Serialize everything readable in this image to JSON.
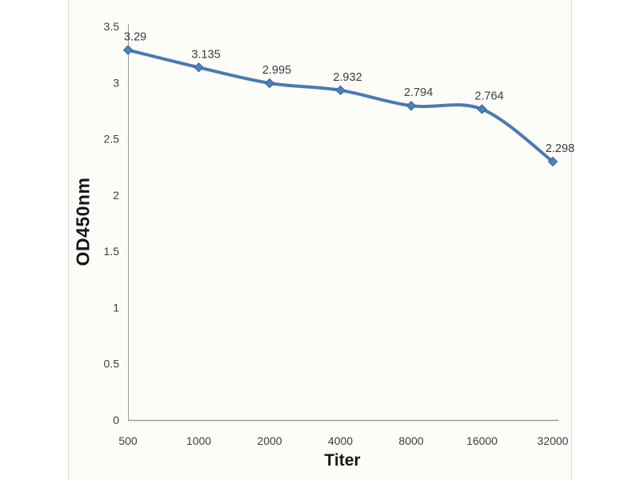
{
  "chart_data": {
    "type": "line",
    "title": "",
    "xlabel": "Titer",
    "ylabel": "OD450nm",
    "x": [
      "500",
      "1000",
      "2000",
      "4000",
      "8000",
      "16000",
      "32000"
    ],
    "series": [
      {
        "name": "OD450nm",
        "values": [
          3.29,
          3.135,
          2.995,
          2.932,
          2.794,
          2.764,
          2.298
        ],
        "data_labels": [
          "3.29",
          "3.135",
          "2.995",
          "2.932",
          "2.794",
          "2.764",
          "2.298"
        ]
      }
    ],
    "ylim": [
      0,
      3.5
    ],
    "yticks": [
      "0",
      "0.5",
      "1",
      "1.5",
      "2",
      "2.5",
      "3",
      "3.5"
    ],
    "grid": false,
    "legend_position": "none",
    "smooth_line": true,
    "marker_shape": "diamond",
    "colors": {
      "line": "#4b7ab2",
      "marker_fill": "#4f81bd",
      "marker_edge": "#38619e",
      "axis_line": "#9b9b9b",
      "tick_label": "#3d3d3d",
      "data_label": "#3b3b3b"
    }
  }
}
